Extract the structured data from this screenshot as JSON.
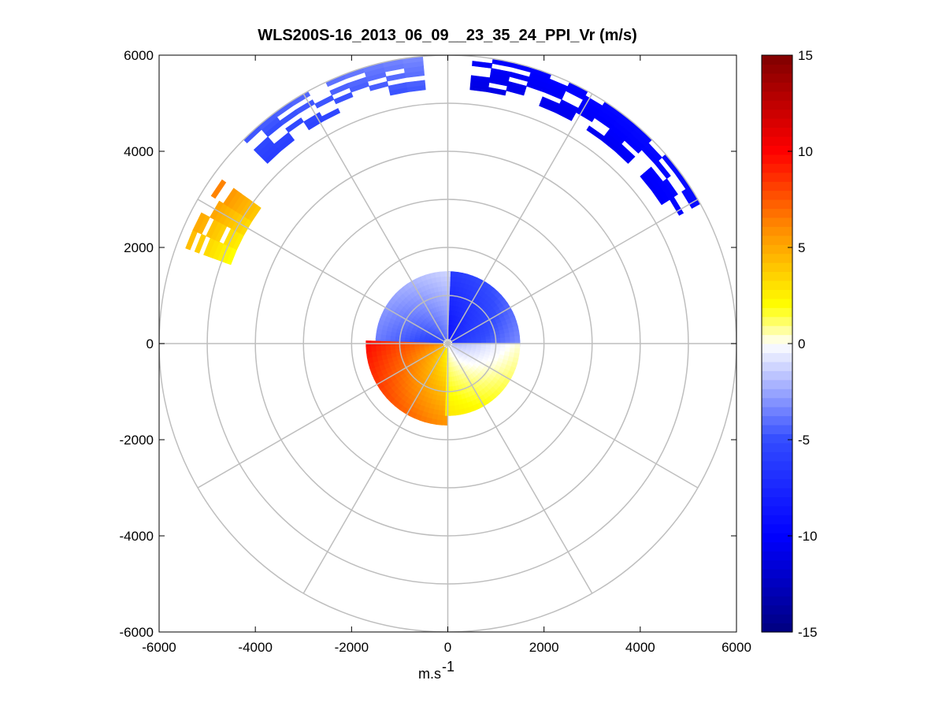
{
  "chart_data": {
    "type": "heatmap",
    "subtype": "polar-ppi",
    "title": "WLS200S-16_2013_06_09__23_35_24_PPI_Vr (m/s)",
    "xlabel": "m.s",
    "xlabel_superscript": "-1",
    "ylabel": "",
    "xlim": [
      -6000,
      6000
    ],
    "ylim": [
      -6000,
      6000
    ],
    "x_ticks": [
      "-6000",
      "-4000",
      "-2000",
      "0",
      "2000",
      "4000",
      "6000"
    ],
    "y_ticks": [
      "6000",
      "4000",
      "2000",
      "0",
      "-2000",
      "-4000",
      "-6000"
    ],
    "range_rings": [
      1000,
      2000,
      3000,
      4000,
      5000,
      6000
    ],
    "spoke_angles_deg": [
      0,
      30,
      60,
      90,
      120,
      150,
      180,
      210,
      240,
      270,
      300,
      330
    ],
    "colorbar": {
      "range": [
        -15,
        15
      ],
      "ticks": [
        "15",
        "10",
        "5",
        "0",
        "-5",
        "-10",
        "-15"
      ],
      "colormap": "blue-white-yellow-red",
      "colors": {
        "min": "#00007f",
        "low": "#0000ff",
        "zero": "#ffffff",
        "mid_high": "#ffff00",
        "high": "#ff0000",
        "max": "#7f0000"
      }
    },
    "grid_color": "#bebebe",
    "velocity_field": [
      {
        "region": "inner-north",
        "r_range": [
          100,
          1500
        ],
        "az_range_deg": [
          0,
          90
        ],
        "vr_range": [
          -9,
          -3
        ]
      },
      {
        "region": "inner-northwest",
        "r_range": [
          100,
          1500
        ],
        "az_range_deg": [
          -90,
          0
        ],
        "vr_range": [
          -6,
          -1
        ]
      },
      {
        "region": "inner-west-south",
        "r_range": [
          100,
          1700
        ],
        "az_range_deg": [
          180,
          270
        ],
        "vr_range": [
          2,
          10
        ]
      },
      {
        "region": "inner-southeast",
        "r_range": [
          100,
          1500
        ],
        "az_range_deg": [
          90,
          180
        ],
        "vr_range": [
          -2,
          3
        ]
      },
      {
        "region": "outer-northeast",
        "r_range": [
          5300,
          6000
        ],
        "az_range_deg": [
          5,
          60
        ],
        "vr_range": [
          -11,
          -9
        ]
      },
      {
        "region": "outer-north-northwest",
        "r_range": [
          5300,
          6000
        ],
        "az_range_deg": [
          -45,
          -5
        ],
        "vr_range": [
          -6,
          -3
        ]
      },
      {
        "region": "outer-west-northwest",
        "r_range": [
          4800,
          5800
        ],
        "az_range_deg": [
          -70,
          -55
        ],
        "vr_range": [
          2,
          7
        ]
      }
    ]
  }
}
